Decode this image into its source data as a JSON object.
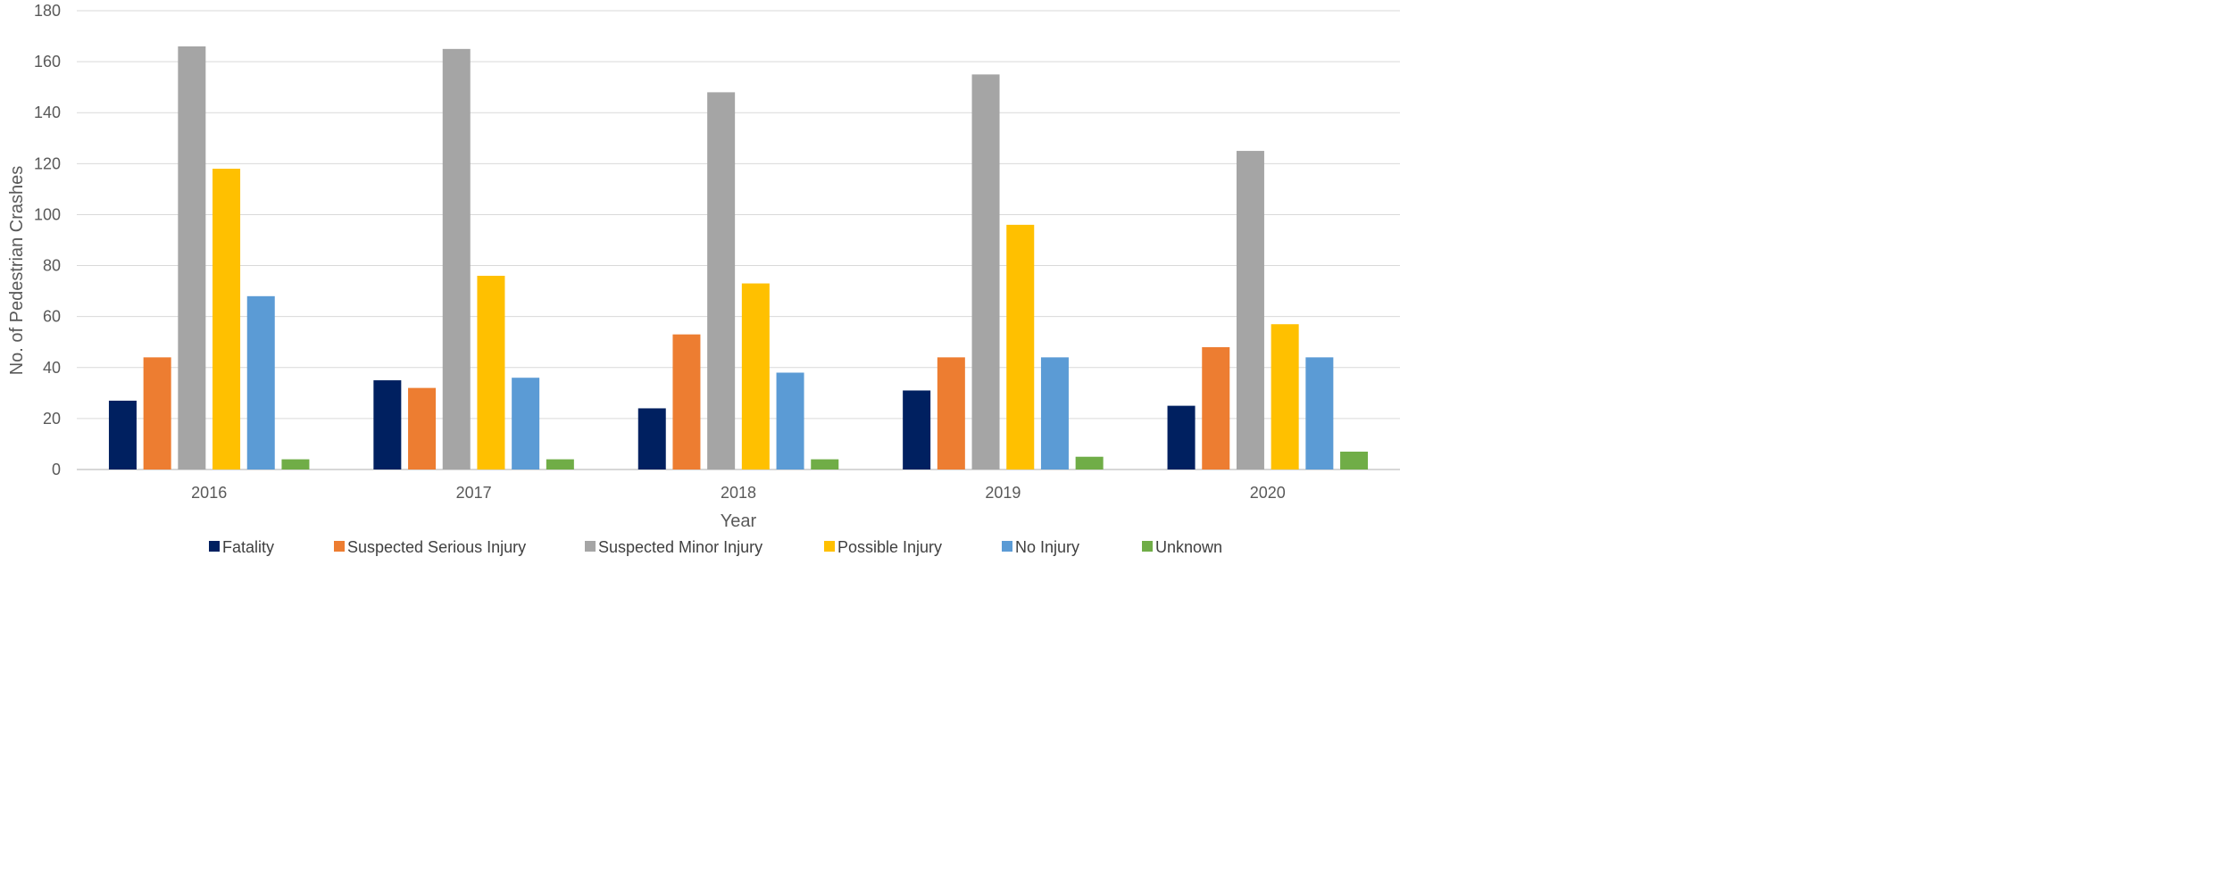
{
  "chart_data": {
    "type": "bar",
    "title": "",
    "xlabel": "Year",
    "ylabel": "No. of Pedestrian Crashes",
    "categories": [
      "2016",
      "2017",
      "2018",
      "2019",
      "2020"
    ],
    "ylim": [
      0,
      180
    ],
    "yticks": [
      0,
      20,
      40,
      60,
      80,
      100,
      120,
      140,
      160,
      180
    ],
    "grid": true,
    "legend_position": "bottom",
    "series": [
      {
        "name": "Fatality",
        "color": "#002060",
        "values": [
          27,
          35,
          24,
          31,
          25
        ]
      },
      {
        "name": "Suspected Serious Injury",
        "color": "#ED7D31",
        "values": [
          44,
          32,
          53,
          44,
          48
        ]
      },
      {
        "name": "Suspected Minor Injury",
        "color": "#A5A5A5",
        "values": [
          166,
          165,
          148,
          155,
          125
        ]
      },
      {
        "name": "Possible Injury",
        "color": "#FFC000",
        "values": [
          118,
          76,
          73,
          96,
          57
        ]
      },
      {
        "name": "No Injury",
        "color": "#5B9BD5",
        "values": [
          68,
          36,
          38,
          44,
          44
        ]
      },
      {
        "name": "Unknown",
        "color": "#70AD47",
        "values": [
          4,
          4,
          4,
          5,
          7
        ]
      }
    ]
  }
}
